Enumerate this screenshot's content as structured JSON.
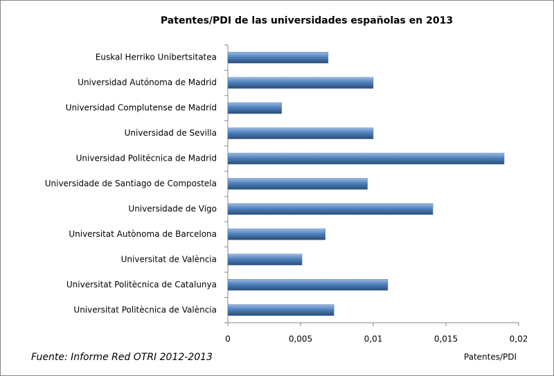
{
  "chart_data": {
    "type": "bar",
    "orientation": "horizontal",
    "title": "Patentes/PDI de las universidades españolas en 2013",
    "x_label": "Patentes/PDI",
    "source": "Fuente: Informe Red OTRI 2012-2013",
    "categories": [
      "Euskal Herriko Unibertsitatea",
      "Universidad Autónoma de Madrid",
      "Universidad Complutense de Madrid",
      "Universidad de Sevilla",
      "Universidad Politécnica de Madrid",
      "Universidade de Santiago  de Compostela",
      "Universidade de Vigo",
      "Universitat Autònoma de Barcelona",
      "Universitat de València",
      "Universitat Politècnica de Catalunya",
      "Universitat Politècnica de València"
    ],
    "values": [
      0.0069,
      0.01,
      0.0037,
      0.01,
      0.019,
      0.0096,
      0.0141,
      0.0067,
      0.0051,
      0.011,
      0.0073
    ],
    "color": "#4f81bd",
    "xlim": [
      0,
      0.02
    ],
    "xticks": [
      0,
      {
        "value": 0.005,
        "label": "0,005"
      },
      {
        "value": 0.01,
        "label": "0,01"
      },
      {
        "value": 0.015,
        "label": "0,015"
      },
      {
        "value": 0.02,
        "label": "0,02"
      }
    ],
    "grid": false
  }
}
